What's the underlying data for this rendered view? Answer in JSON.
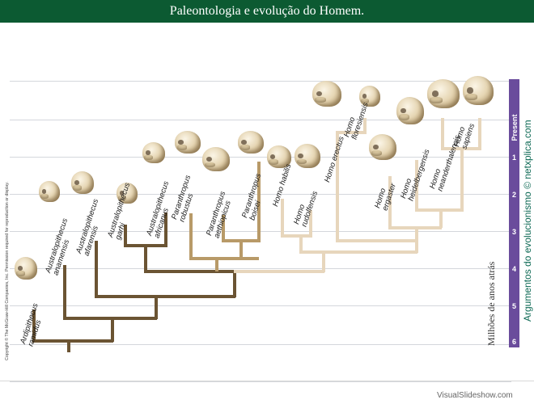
{
  "header": {
    "title": "Paleontologia e evolução do Homem."
  },
  "time_axis": {
    "title": "Milhões de anos atrás",
    "present_label": "Present",
    "ticks": [
      "1",
      "2",
      "3",
      "4",
      "5",
      "6"
    ]
  },
  "species": [
    {
      "id": "ardipithecus-ramidus",
      "lines": [
        "Ardipithecus",
        "ramidus"
      ]
    },
    {
      "id": "australopithecus-anamensis",
      "lines": [
        "Australopithecus",
        "anamensis"
      ]
    },
    {
      "id": "australopithecus-afarensis",
      "lines": [
        "Australopithecus",
        "afarensis"
      ]
    },
    {
      "id": "australopithecus-garhi",
      "lines": [
        "Australopithecus",
        "garhi"
      ]
    },
    {
      "id": "australopithecus-africanus",
      "lines": [
        "Australopithecus",
        "africanus"
      ]
    },
    {
      "id": "paranthropus-robustus",
      "lines": [
        "Paranthropus",
        "robustus"
      ]
    },
    {
      "id": "paranthropus-aethiopicus",
      "lines": [
        "Paranthropus",
        "aethiopicus"
      ]
    },
    {
      "id": "paranthropus-boisei",
      "lines": [
        "Paranthropus",
        "boisei"
      ]
    },
    {
      "id": "homo-habilis",
      "lines": [
        "Homo habilis"
      ]
    },
    {
      "id": "homo-rudolfensis",
      "lines": [
        "Homo",
        "rudolfensis"
      ]
    },
    {
      "id": "homo-erectus",
      "lines": [
        "Homo erectus"
      ]
    },
    {
      "id": "homo-floresiensis",
      "lines": [
        "Homo",
        "floresiensis"
      ]
    },
    {
      "id": "homo-ergaster",
      "lines": [
        "Homo",
        "ergaster"
      ]
    },
    {
      "id": "homo-heidelbergensis",
      "lines": [
        "Homo",
        "heidelbergensis"
      ]
    },
    {
      "id": "homo-neanderthalensis",
      "lines": [
        "Homo",
        "neanderthalensis"
      ]
    },
    {
      "id": "homo-sapiens",
      "lines": [
        "Homo",
        "sapiens"
      ]
    }
  ],
  "colors": {
    "header_bg": "#0c5a32",
    "australopith_branch": "#6b5433",
    "paranthropus_branch": "#b89a68",
    "homo_branch": "#e7d6bc",
    "time_bar": "#6a4c9c"
  },
  "side_caption": "Argumentos do evolucionismo © netxplica.com",
  "copyright": "Copyright © The McGraw-Hill Companies, Inc. Permission required for reproduction or display.",
  "watermark": "VisualSlideshow.com"
}
